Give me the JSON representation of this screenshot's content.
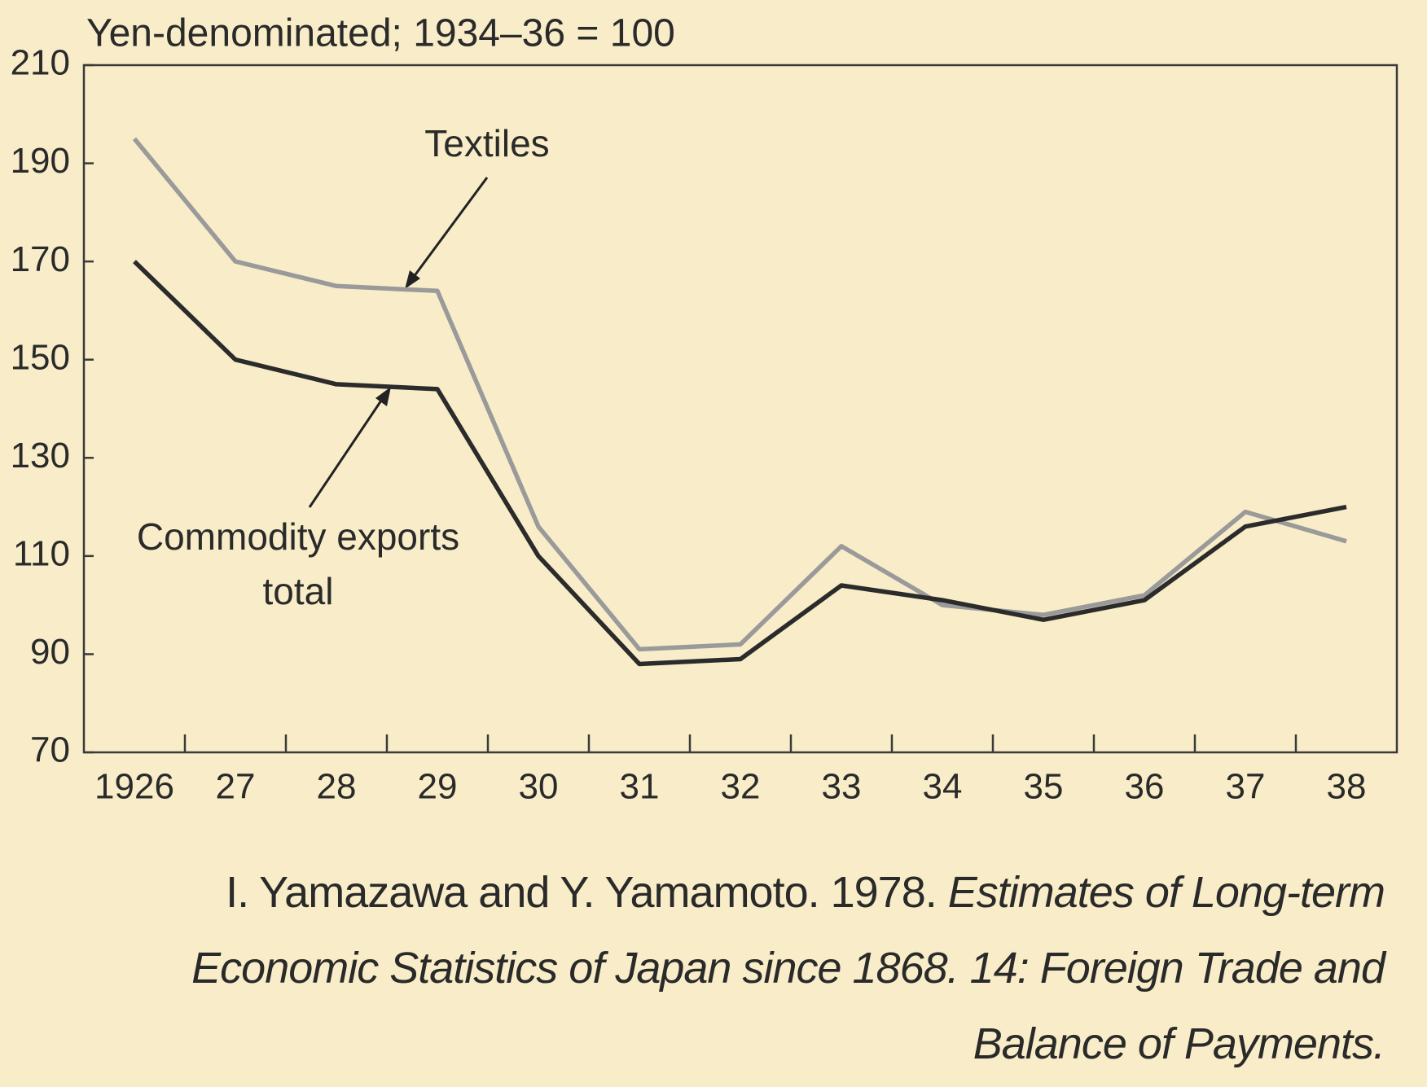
{
  "chart_data": {
    "type": "line",
    "title": "Yen-denominated; 1934–36 = 100",
    "categories": [
      "1926",
      "27",
      "28",
      "29",
      "30",
      "31",
      "32",
      "33",
      "34",
      "35",
      "36",
      "37",
      "38"
    ],
    "series": [
      {
        "name": "Textiles",
        "color": "#9a9a9a",
        "values": [
          195,
          170,
          165,
          164,
          116,
          91,
          92,
          112,
          100,
          98,
          102,
          119,
          113
        ]
      },
      {
        "name": "Commodity exports total",
        "color": "#2b2b2b",
        "values": [
          170,
          150,
          145,
          144,
          110,
          88,
          89,
          104,
          101,
          97,
          101,
          116,
          120
        ]
      }
    ],
    "annotations": [
      "Textiles",
      "Commodity exports",
      "total"
    ],
    "ylim": [
      70,
      210
    ],
    "yticks": [
      70,
      90,
      110,
      130,
      150,
      170,
      190,
      210
    ],
    "grid": false
  },
  "source": {
    "author": "I. Yamazawa and Y. Yamamoto. 1978.",
    "title": "Estimates of Long-term Economic Statistics of Japan since 1868. 14: Foreign Trade and Balance of Payments."
  }
}
